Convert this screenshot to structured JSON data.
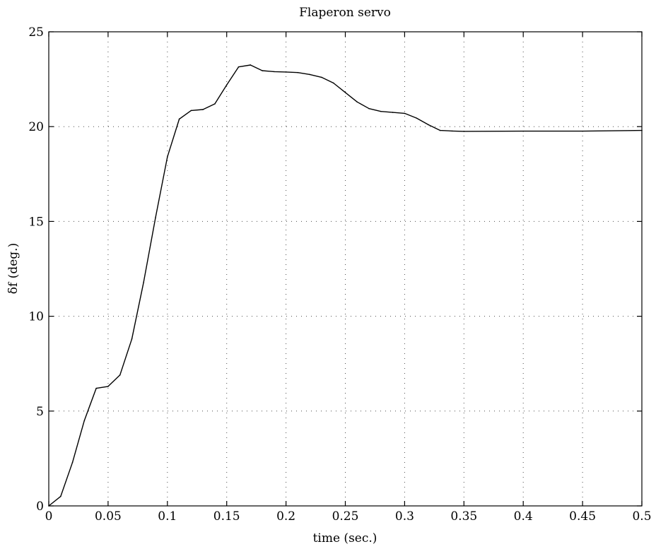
{
  "chart_data": {
    "type": "line",
    "title": "Flaperon servo",
    "xlabel": "time (sec.)",
    "ylabel": "δf (deg.)",
    "xlim": [
      0,
      0.5
    ],
    "ylim": [
      0,
      25
    ],
    "grid": true,
    "x_ticks": [
      0,
      0.05,
      0.1,
      0.15,
      0.2,
      0.25,
      0.3,
      0.35,
      0.4,
      0.45,
      0.5
    ],
    "x_tick_labels": [
      "0",
      "0.05",
      "0.1",
      "0.15",
      "0.2",
      "0.25",
      "0.3",
      "0.35",
      "0.4",
      "0.45",
      "0.5"
    ],
    "y_ticks": [
      0,
      5,
      10,
      15,
      20,
      25
    ],
    "y_tick_labels": [
      "0",
      "5",
      "10",
      "15",
      "20",
      "25"
    ],
    "series": [
      {
        "x": [
          0,
          0.01,
          0.02,
          0.03,
          0.04,
          0.05,
          0.06,
          0.07,
          0.08,
          0.09,
          0.1,
          0.11,
          0.12,
          0.13,
          0.14,
          0.15,
          0.16,
          0.17,
          0.18,
          0.19,
          0.2,
          0.21,
          0.22,
          0.23,
          0.24,
          0.25,
          0.26,
          0.27,
          0.28,
          0.29,
          0.3,
          0.31,
          0.32,
          0.33,
          0.34,
          0.35,
          0.4,
          0.45,
          0.5
        ],
        "y": [
          0,
          0.5,
          2.3,
          4.5,
          6.2,
          6.3,
          6.9,
          8.8,
          11.8,
          15.2,
          18.4,
          20.4,
          20.85,
          20.9,
          21.2,
          22.2,
          23.15,
          23.25,
          22.95,
          22.9,
          22.88,
          22.85,
          22.75,
          22.6,
          22.3,
          21.8,
          21.3,
          20.95,
          20.8,
          20.75,
          20.7,
          20.45,
          20.1,
          19.8,
          19.77,
          19.75,
          19.76,
          19.76,
          19.8
        ]
      }
    ]
  }
}
